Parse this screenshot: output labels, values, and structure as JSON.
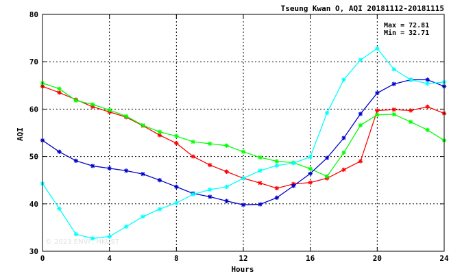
{
  "chart_data": {
    "type": "line",
    "title": "Tseung Kwan O, AQI 20181112-20181115",
    "xlabel": "Hours",
    "ylabel": "AQI",
    "xlim": [
      0,
      24
    ],
    "ylim": [
      30,
      80
    ],
    "x_ticks": [
      0,
      4,
      8,
      12,
      16,
      20,
      24
    ],
    "y_ticks": [
      30,
      40,
      50,
      60,
      70,
      80
    ],
    "grid": true,
    "annotations": [
      "Max = 72.81",
      "Min = 32.71"
    ],
    "watermark": "© 2023 ENVF, HKUST",
    "x": [
      0,
      1,
      2,
      3,
      4,
      5,
      6,
      7,
      8,
      9,
      10,
      11,
      12,
      13,
      14,
      15,
      16,
      17,
      18,
      19,
      20,
      21,
      22,
      23,
      24
    ],
    "series": [
      {
        "color": "#ff0000",
        "values": [
          64.8,
          63.5,
          62.0,
          60.5,
          59.4,
          58.3,
          56.5,
          54.5,
          52.8,
          50.0,
          48.2,
          46.8,
          45.4,
          44.4,
          43.3,
          44.2,
          44.5,
          45.4,
          47.2,
          49.0,
          59.7,
          59.9,
          59.7,
          60.5,
          59.1
        ]
      },
      {
        "color": "#00ff00",
        "values": [
          65.5,
          64.3,
          61.8,
          61.0,
          59.8,
          58.5,
          56.6,
          55.2,
          54.3,
          53.1,
          52.7,
          52.3,
          51.0,
          49.8,
          49.0,
          48.7,
          47.4,
          45.8,
          50.8,
          56.6,
          58.8,
          58.9,
          57.3,
          55.6,
          53.4
        ]
      },
      {
        "color": "#0000cc",
        "values": [
          53.4,
          51.0,
          49.1,
          48.0,
          47.5,
          47.0,
          46.3,
          45.0,
          43.6,
          42.2,
          41.5,
          40.6,
          39.8,
          39.9,
          41.3,
          43.8,
          46.4,
          49.7,
          53.9,
          59.0,
          63.4,
          65.3,
          66.2,
          66.2,
          64.8
        ]
      },
      {
        "color": "#00ffff",
        "values": [
          44.3,
          39.0,
          33.6,
          32.7,
          33.1,
          35.2,
          37.3,
          38.9,
          40.2,
          42.0,
          43.0,
          43.6,
          45.4,
          47.0,
          48.1,
          48.6,
          49.9,
          59.2,
          66.2,
          70.4,
          72.8,
          68.4,
          66.2,
          65.4,
          65.7
        ]
      }
    ]
  }
}
